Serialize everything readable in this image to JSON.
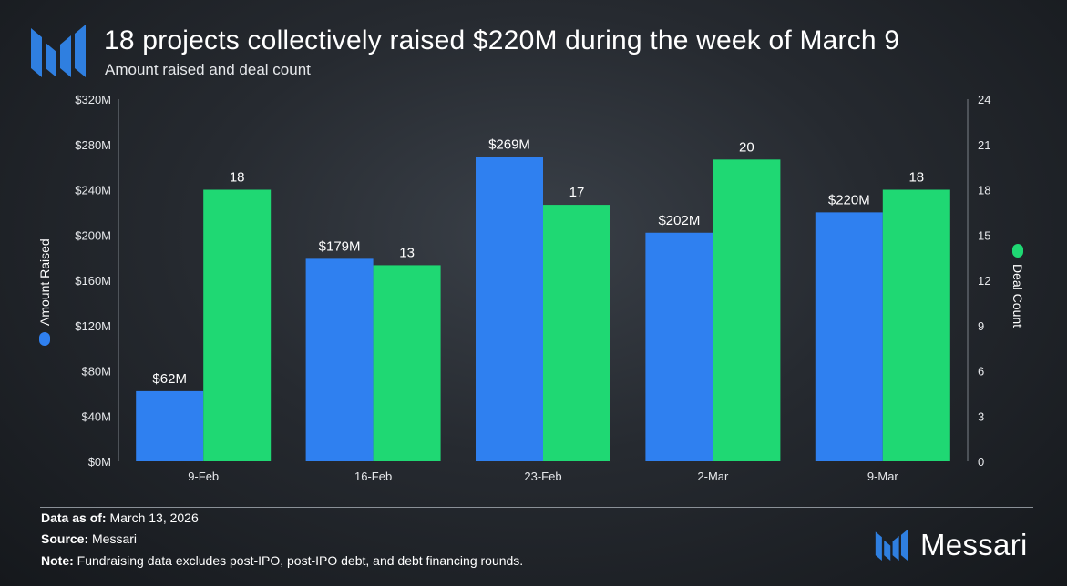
{
  "header": {
    "title": "18 projects collectively raised $220M during the week of March 9",
    "subtitle": "Amount raised and deal count"
  },
  "chart_data": {
    "type": "bar",
    "title": "18 projects collectively raised $220M during the week of March 9",
    "subtitle": "Amount raised and deal count",
    "categories": [
      "9-Feb",
      "16-Feb",
      "23-Feb",
      "2-Mar",
      "9-Mar"
    ],
    "series": [
      {
        "name": "Amount Raised",
        "axis": "left",
        "color": "#2f80f0",
        "values": [
          62,
          179,
          269,
          202,
          220
        ],
        "labels": [
          "$62M",
          "$179M",
          "$269M",
          "$202M",
          "$220M"
        ]
      },
      {
        "name": "Deal Count",
        "axis": "right",
        "color": "#1fd873",
        "values": [
          18,
          13,
          17,
          20,
          18
        ],
        "labels": [
          "18",
          "13",
          "17",
          "20",
          "18"
        ]
      }
    ],
    "ylabel": "Amount Raised",
    "y2label": "Deal Count",
    "ylim": [
      0,
      320
    ],
    "y2lim": [
      0,
      24
    ],
    "yticks": [
      "$0M",
      "$40M",
      "$80M",
      "$120M",
      "$160M",
      "$200M",
      "$240M",
      "$280M",
      "$320M"
    ],
    "y2ticks": [
      "0",
      "3",
      "6",
      "9",
      "12",
      "15",
      "18",
      "21",
      "24"
    ],
    "grid": false
  },
  "footer": {
    "data_as_of_label": "Data as of:",
    "data_as_of_value": "March 13, 2026",
    "source_label": "Source:",
    "source_value": "Messari",
    "note_label": "Note:",
    "note_value": "Fundraising data excludes post-IPO, post-IPO debt, and debt financing rounds."
  },
  "brand": {
    "name": "Messari",
    "icon": "messari-logo-icon",
    "color": "#2f7fe0"
  }
}
